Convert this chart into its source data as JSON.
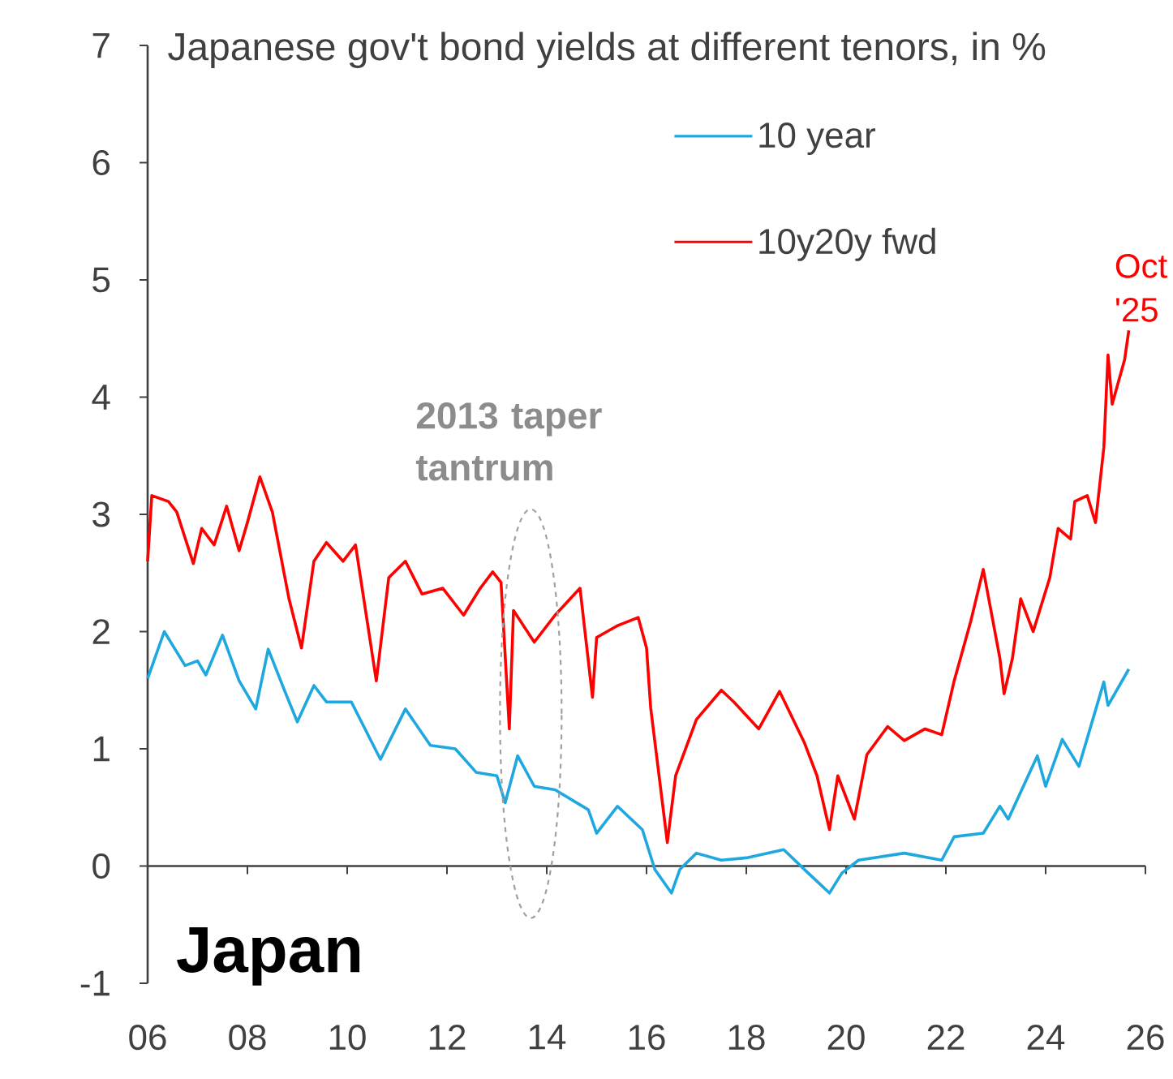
{
  "chart_data": {
    "type": "line",
    "title": "Japanese gov't bond yields at different tenors, in %",
    "annotations": [
      "2013 taper tantrum",
      {
        "text": "Oct '25",
        "x": "2025-09",
        "y": 4.57
      },
      "Japan"
    ],
    "xlim": [
      "2006",
      "2026"
    ],
    "xticks": [
      {
        "value": "2006",
        "label": "06"
      },
      {
        "value": "2008",
        "label": "08"
      },
      {
        "value": "2010",
        "label": "10"
      },
      {
        "value": "2012",
        "label": "12"
      },
      {
        "value": "2014",
        "label": "14"
      },
      {
        "value": "2016",
        "label": "16"
      },
      {
        "value": "2018",
        "label": "18"
      },
      {
        "value": "2020",
        "label": "20"
      },
      {
        "value": "2022",
        "label": "22"
      },
      {
        "value": "2024",
        "label": "24"
      },
      {
        "value": "2026",
        "label": "26"
      }
    ],
    "ylim": [
      -1,
      7
    ],
    "yticks": [
      -1,
      0,
      1,
      2,
      3,
      4,
      5,
      6,
      7
    ],
    "legend": "top right",
    "series": [
      {
        "name": "10 year",
        "color": "#1fa8e0",
        "x": [
          "2006-01",
          "2006-05",
          "2006-10",
          "2007-01",
          "2007-03",
          "2007-07",
          "2007-11",
          "2008-03",
          "2008-06",
          "2008-10",
          "2009-01",
          "2009-05",
          "2009-08",
          "2010-02",
          "2010-09",
          "2011-03",
          "2011-09",
          "2012-03",
          "2012-08",
          "2013-01",
          "2013-03",
          "2013-06",
          "2013-10",
          "2014-03",
          "2014-11",
          "2015-01",
          "2015-06",
          "2015-12",
          "2016-03",
          "2016-07",
          "2016-09",
          "2017-01",
          "2017-07",
          "2018-01",
          "2018-10",
          "2019-03",
          "2019-09",
          "2019-12",
          "2020-04",
          "2021-03",
          "2021-12",
          "2022-03",
          "2022-10",
          "2023-02",
          "2023-04",
          "2023-11",
          "2024-01",
          "2024-05",
          "2024-09",
          "2025-03",
          "2025-04",
          "2025-09"
        ],
        "values": [
          1.6,
          2.0,
          1.71,
          1.75,
          1.63,
          1.97,
          1.58,
          1.34,
          1.85,
          1.49,
          1.23,
          1.54,
          1.4,
          1.4,
          0.91,
          1.34,
          1.03,
          1.0,
          0.8,
          0.77,
          0.54,
          0.94,
          0.68,
          0.65,
          0.48,
          0.28,
          0.51,
          0.31,
          -0.03,
          -0.23,
          -0.03,
          0.11,
          0.05,
          0.07,
          0.14,
          -0.03,
          -0.23,
          -0.06,
          0.05,
          0.11,
          0.05,
          0.25,
          0.28,
          0.51,
          0.4,
          0.94,
          0.68,
          1.08,
          0.85,
          1.57,
          1.37,
          1.68
        ]
      },
      {
        "name": "10y20y fwd",
        "color": "#ff0000",
        "x": [
          "2006-01",
          "2006-02",
          "2006-06",
          "2006-08",
          "2006-12",
          "2007-02",
          "2007-05",
          "2007-08",
          "2007-11",
          "2008-01",
          "2008-04",
          "2008-07",
          "2008-11",
          "2009-02",
          "2009-05",
          "2009-08",
          "2009-12",
          "2010-03",
          "2010-08",
          "2010-11",
          "2011-03",
          "2011-07",
          "2011-12",
          "2012-05",
          "2012-09",
          "2012-12",
          "2013-02",
          "2013-04",
          "2013-05",
          "2013-10",
          "2014-03",
          "2014-09",
          "2014-12",
          "2015-01",
          "2015-06",
          "2015-11",
          "2016-01",
          "2016-02",
          "2016-06",
          "2016-08",
          "2017-01",
          "2017-07",
          "2017-10",
          "2018-04",
          "2018-09",
          "2019-03",
          "2019-06",
          "2019-09",
          "2019-11",
          "2020-03",
          "2020-06",
          "2020-11",
          "2021-03",
          "2021-08",
          "2021-12",
          "2022-03",
          "2022-07",
          "2022-10",
          "2023-02",
          "2023-03",
          "2023-05",
          "2023-07",
          "2023-10",
          "2024-02",
          "2024-04",
          "2024-07",
          "2024-08",
          "2024-11",
          "2025-01",
          "2025-03",
          "2025-04",
          "2025-05",
          "2025-08",
          "2025-09"
        ],
        "values": [
          2.6,
          3.16,
          3.11,
          3.02,
          2.58,
          2.88,
          2.74,
          3.07,
          2.69,
          2.93,
          3.32,
          3.02,
          2.28,
          1.86,
          2.6,
          2.76,
          2.6,
          2.74,
          1.58,
          2.46,
          2.6,
          2.32,
          2.37,
          2.14,
          2.37,
          2.51,
          2.42,
          1.17,
          2.18,
          1.91,
          2.14,
          2.37,
          1.44,
          1.95,
          2.05,
          2.12,
          1.86,
          1.35,
          0.2,
          0.77,
          1.25,
          1.5,
          1.4,
          1.17,
          1.49,
          1.05,
          0.77,
          0.31,
          0.77,
          0.4,
          0.95,
          1.19,
          1.07,
          1.17,
          1.12,
          1.58,
          2.09,
          2.53,
          1.77,
          1.47,
          1.77,
          2.28,
          2.0,
          2.46,
          2.88,
          2.79,
          3.11,
          3.16,
          2.93,
          3.57,
          4.36,
          3.94,
          4.32,
          4.57
        ]
      }
    ]
  }
}
